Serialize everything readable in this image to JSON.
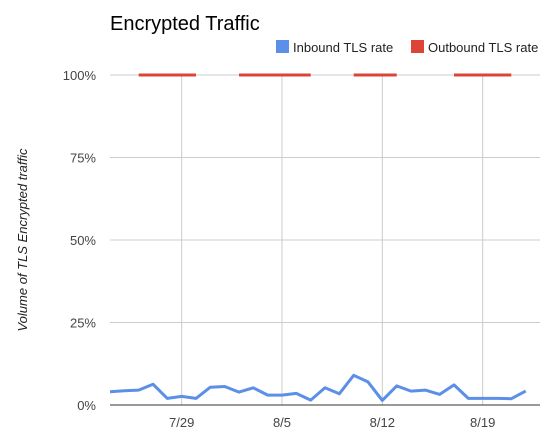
{
  "chart_data": {
    "type": "line",
    "title": "Encrypted Traffic",
    "ylabel": "Volume of TLS Encrypted traffic",
    "xlabel": "",
    "ylim": [
      0,
      1
    ],
    "yticks": [
      {
        "value": 0,
        "label": "0%"
      },
      {
        "value": 0.25,
        "label": "25%"
      },
      {
        "value": 0.5,
        "label": "50%"
      },
      {
        "value": 0.75,
        "label": "75%"
      },
      {
        "value": 1,
        "label": "100%"
      }
    ],
    "xlim": [
      "2017-07-24",
      "2017-08-23"
    ],
    "xticks": [
      {
        "value": "2017-07-29",
        "label": "7/29"
      },
      {
        "value": "2017-08-05",
        "label": "8/5"
      },
      {
        "value": "2017-08-12",
        "label": "8/12"
      },
      {
        "value": "2017-08-19",
        "label": "8/19"
      }
    ],
    "grid": true,
    "legend": "top-right",
    "series": [
      {
        "name": "Inbound TLS rate",
        "color": "#5b8fe8",
        "points": [
          {
            "x": "2017-07-24",
            "y": 0.04
          },
          {
            "x": "2017-07-25",
            "y": 0.043
          },
          {
            "x": "2017-07-26",
            "y": 0.045
          },
          {
            "x": "2017-07-27",
            "y": 0.063
          },
          {
            "x": "2017-07-28",
            "y": 0.02
          },
          {
            "x": "2017-07-29",
            "y": 0.026
          },
          {
            "x": "2017-07-30",
            "y": 0.02
          },
          {
            "x": "2017-07-31",
            "y": 0.054
          },
          {
            "x": "2017-08-01",
            "y": 0.056
          },
          {
            "x": "2017-08-02",
            "y": 0.039
          },
          {
            "x": "2017-08-03",
            "y": 0.052
          },
          {
            "x": "2017-08-04",
            "y": 0.03
          },
          {
            "x": "2017-08-05",
            "y": 0.03
          },
          {
            "x": "2017-08-06",
            "y": 0.035
          },
          {
            "x": "2017-08-07",
            "y": 0.015
          },
          {
            "x": "2017-08-08",
            "y": 0.052
          },
          {
            "x": "2017-08-09",
            "y": 0.034
          },
          {
            "x": "2017-08-10",
            "y": 0.09
          },
          {
            "x": "2017-08-11",
            "y": 0.07
          },
          {
            "x": "2017-08-12",
            "y": 0.014
          },
          {
            "x": "2017-08-13",
            "y": 0.058
          },
          {
            "x": "2017-08-14",
            "y": 0.042
          },
          {
            "x": "2017-08-15",
            "y": 0.045
          },
          {
            "x": "2017-08-16",
            "y": 0.032
          },
          {
            "x": "2017-08-17",
            "y": 0.061
          },
          {
            "x": "2017-08-18",
            "y": 0.02
          },
          {
            "x": "2017-08-19",
            "y": 0.02
          },
          {
            "x": "2017-08-20",
            "y": 0.02
          },
          {
            "x": "2017-08-21",
            "y": 0.019
          },
          {
            "x": "2017-08-22",
            "y": 0.042
          }
        ]
      },
      {
        "name": "Outbound TLS rate",
        "color": "#db4437",
        "points": [
          {
            "x": "2017-07-26",
            "y": 1.0
          },
          {
            "x": "2017-07-27",
            "y": 1.0
          },
          {
            "x": "2017-07-28",
            "y": 1.0
          },
          {
            "x": "2017-07-29",
            "y": 1.0
          },
          {
            "x": "2017-07-30",
            "y": 1.0
          },
          {
            "x": null,
            "y": null
          },
          {
            "x": "2017-08-02",
            "y": 1.0
          },
          {
            "x": "2017-08-03",
            "y": 1.0
          },
          {
            "x": "2017-08-04",
            "y": 1.0
          },
          {
            "x": "2017-08-05",
            "y": 1.0
          },
          {
            "x": "2017-08-06",
            "y": 1.0
          },
          {
            "x": "2017-08-07",
            "y": 1.0
          },
          {
            "x": null,
            "y": null
          },
          {
            "x": "2017-08-10",
            "y": 1.0
          },
          {
            "x": "2017-08-11",
            "y": 1.0
          },
          {
            "x": "2017-08-12",
            "y": 1.0
          },
          {
            "x": "2017-08-13",
            "y": 1.0
          },
          {
            "x": null,
            "y": null
          },
          {
            "x": "2017-08-17",
            "y": 1.0
          },
          {
            "x": "2017-08-18",
            "y": 1.0
          },
          {
            "x": "2017-08-19",
            "y": 1.0
          },
          {
            "x": "2017-08-20",
            "y": 1.0
          },
          {
            "x": "2017-08-21",
            "y": 1.0
          }
        ]
      }
    ],
    "colors": {
      "gridline": "#cccccc",
      "baseline": "#333333"
    }
  }
}
